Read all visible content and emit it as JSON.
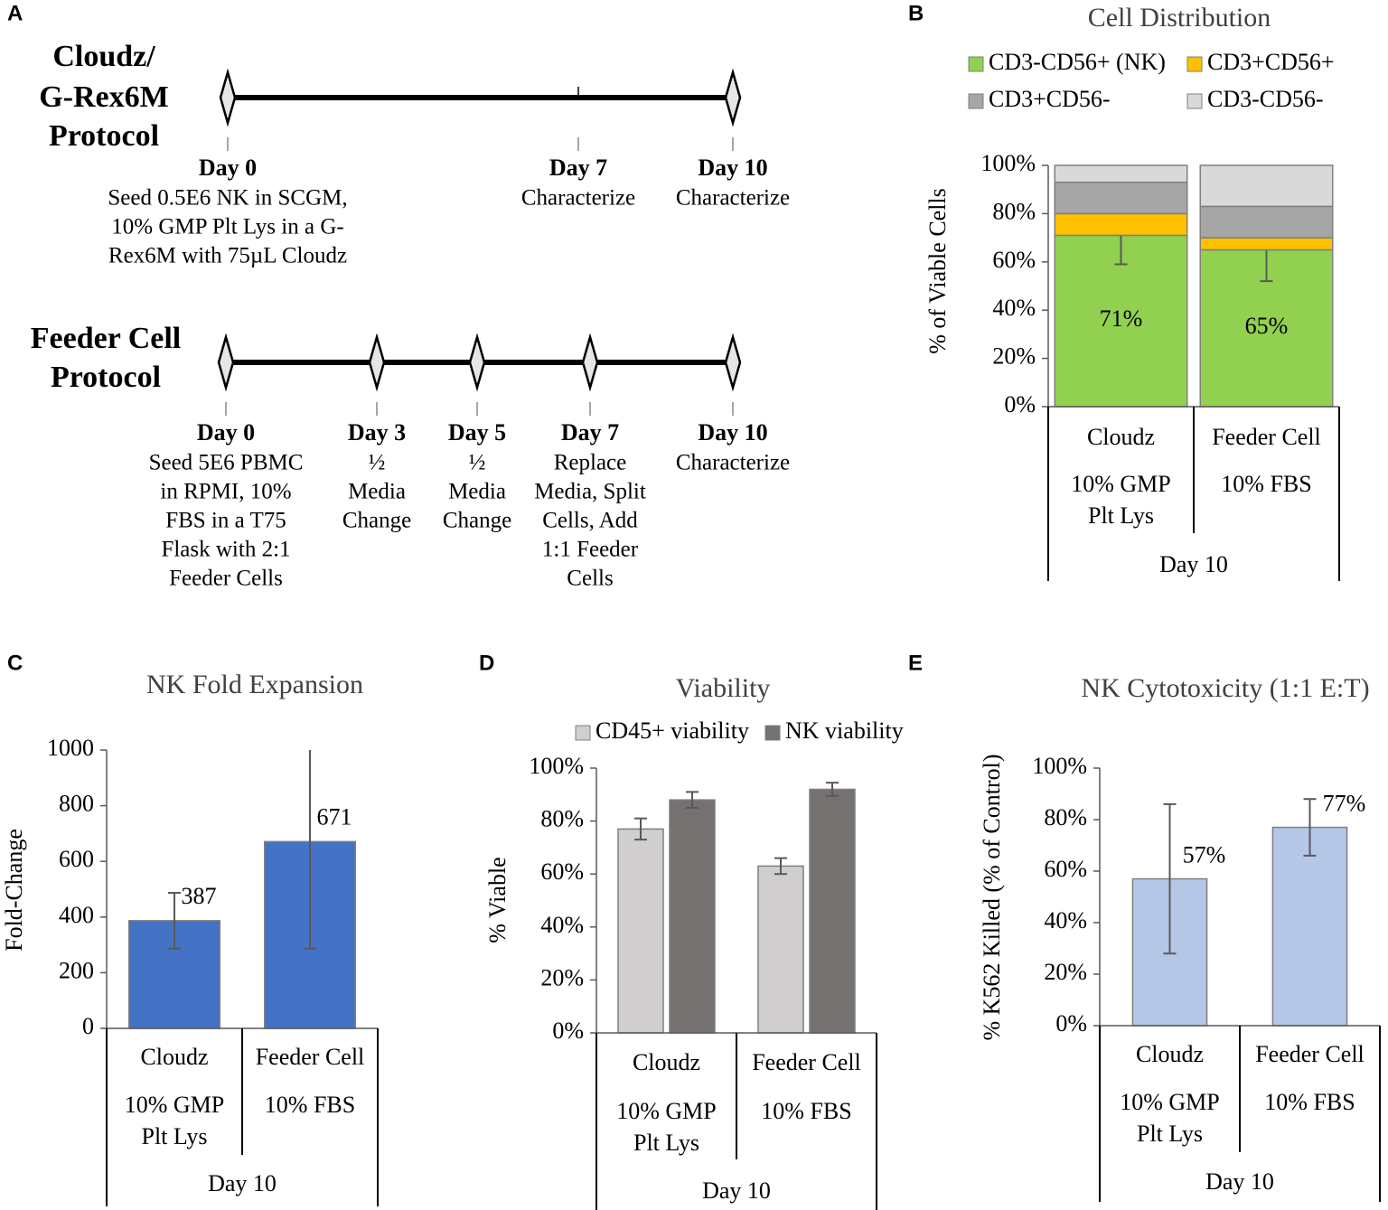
{
  "timeline": {
    "label": "A",
    "protocols": [
      {
        "title_lines": [
          "Cloudz/",
          "G-Rex6M",
          "Protocol"
        ],
        "events": [
          {
            "day": "Day 0",
            "lines": [
              "Seed 0.5E6 NK in SCGM,",
              "10% GMP Plt Lys in a G-",
              "Rex6M with 75µL Cloudz"
            ]
          },
          {
            "day": "Day 7",
            "lines": [
              "Characterize"
            ]
          },
          {
            "day": "Day 10",
            "lines": [
              "Characterize"
            ]
          }
        ]
      },
      {
        "title_lines": [
          "Feeder Cell",
          "Protocol"
        ],
        "events": [
          {
            "day": "Day 0",
            "lines": [
              "Seed 5E6 PBMC",
              "in RPMI, 10%",
              "FBS in a T75",
              "Flask with 2:1",
              "Feeder Cells"
            ]
          },
          {
            "day": "Day 3",
            "lines": [
              "½",
              "Media",
              "Change"
            ]
          },
          {
            "day": "Day 5",
            "lines": [
              "½",
              "Media",
              "Change"
            ]
          },
          {
            "day": "Day 7",
            "lines": [
              "Replace",
              "Media, Split",
              "Cells, Add",
              "1:1 Feeder",
              "Cells"
            ]
          },
          {
            "day": "Day 10",
            "lines": [
              "Characterize"
            ]
          }
        ]
      }
    ]
  },
  "chart_data": [
    {
      "type": "bar",
      "stacked": true,
      "panel_label": "B",
      "title": "Cell Distribution",
      "y_label": "% of Viable Cells",
      "categories": [
        "Cloudz",
        "Feeder Cell"
      ],
      "subcategories": [
        "10% GMP Plt Lys",
        "10% FBS"
      ],
      "group_label": "Day 10",
      "series": [
        {
          "name": "CD3-CD56+ (NK)",
          "color": "#92d050",
          "values": [
            71,
            65
          ],
          "errors": [
            12,
            13
          ],
          "value_labels": [
            "71%",
            "65%"
          ]
        },
        {
          "name": "CD3+CD56+",
          "color": "#ffc000",
          "values": [
            9,
            5
          ]
        },
        {
          "name": "CD3+CD56-",
          "color": "#a6a6a6",
          "values": [
            13,
            13
          ]
        },
        {
          "name": "CD3-CD56-",
          "color": "#d9d9d9",
          "values": [
            7,
            17
          ]
        }
      ],
      "ylim": [
        0,
        100
      ],
      "yticks": [
        {
          "value": 0,
          "label": "0%"
        },
        {
          "value": 20,
          "label": "20%"
        },
        {
          "value": 40,
          "label": "40%"
        },
        {
          "value": 60,
          "label": "60%"
        },
        {
          "value": 80,
          "label": "80%"
        },
        {
          "value": 100,
          "label": "100%"
        }
      ],
      "grid": false,
      "legend": "top"
    },
    {
      "type": "bar",
      "panel_label": "C",
      "title": "NK Fold Expansion",
      "y_label": "Fold-Change",
      "categories": [
        "Cloudz",
        "Feeder Cell"
      ],
      "subcategories": [
        "10% GMP Plt Lys",
        "10% FBS"
      ],
      "group_label": "Day 10",
      "values": [
        387,
        671
      ],
      "errors": [
        100,
        384
      ],
      "color": "#4472c4",
      "ylim": [
        0,
        1000
      ],
      "yticks": [
        0,
        200,
        400,
        600,
        800,
        1000
      ],
      "grid": false
    },
    {
      "type": "bar",
      "panel_label": "D",
      "title": "Viability",
      "y_label": "% Viable",
      "categories": [
        "Cloudz",
        "Feeder Cell"
      ],
      "subcategories": [
        "10% GMP Plt Lys",
        "10% FBS"
      ],
      "group_label": "Day 10",
      "series": [
        {
          "name": "CD45+ viability",
          "color": "#d0cece",
          "values": [
            77,
            63
          ],
          "errors": [
            4,
            3
          ]
        },
        {
          "name": "NK viability",
          "color": "#767171",
          "values": [
            88,
            92
          ],
          "errors": [
            3,
            2.5
          ]
        }
      ],
      "ylim": [
        0,
        100
      ],
      "yticks": [
        {
          "value": 0,
          "label": "0%"
        },
        {
          "value": 20,
          "label": "20%"
        },
        {
          "value": 40,
          "label": "40%"
        },
        {
          "value": 60,
          "label": "60%"
        },
        {
          "value": 80,
          "label": "80%"
        },
        {
          "value": 100,
          "label": "100%"
        }
      ],
      "grid": false,
      "legend": "top"
    },
    {
      "type": "bar",
      "panel_label": "E",
      "title": "NK Cytotoxicity (1:1 E:T)",
      "y_label": "% K562 Killed (% of Control)",
      "categories": [
        "Cloudz",
        "Feeder Cell"
      ],
      "subcategories": [
        "10% GMP Plt Lys",
        "10% FBS"
      ],
      "group_label": "Day 10",
      "values": [
        57,
        77
      ],
      "errors": [
        29,
        11
      ],
      "value_labels": [
        "57%",
        "77%"
      ],
      "color": "#b4c7e7",
      "ylim": [
        0,
        100
      ],
      "yticks": [
        {
          "value": 0,
          "label": "0%"
        },
        {
          "value": 20,
          "label": "20%"
        },
        {
          "value": 40,
          "label": "40%"
        },
        {
          "value": 60,
          "label": "60%"
        },
        {
          "value": 80,
          "label": "80%"
        },
        {
          "value": 100,
          "label": "100%"
        }
      ],
      "grid": false
    }
  ]
}
